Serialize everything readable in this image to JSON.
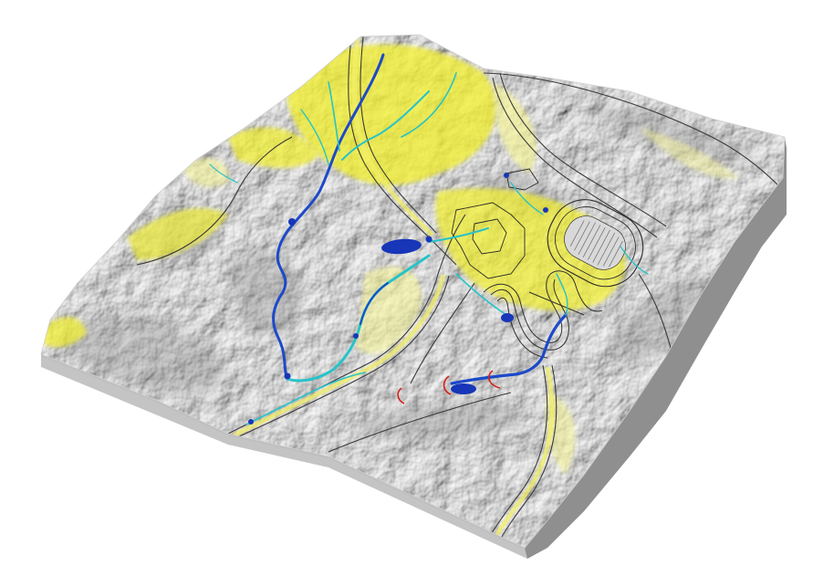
{
  "map": {
    "colors": {
      "background": "#ffffff",
      "terrain_light": "#f6f6f6",
      "terrain_shadow": "#8e8e8e",
      "block_side_front": "#bdbdbd",
      "block_side_right": "#8f8f8f",
      "wet_area": "#f2ef2a",
      "wet_area_light": "#f7f59a",
      "stream_cyan": "#27c3c8",
      "stream_blue": "#1c49c9",
      "ponding": "#1736b8",
      "road_line": "#3a3a3a",
      "road_fill": "#f1ee6a",
      "marker_red": "#d7221b"
    },
    "features": {
      "terrain": "hillshaded-terrain-block",
      "streams": "flow-accumulation-network",
      "wet_areas": "wetness-index-yellow",
      "roads": "road-network",
      "track": "running-track",
      "parking": "parking-loops",
      "markers": "red-arc-markers"
    }
  }
}
